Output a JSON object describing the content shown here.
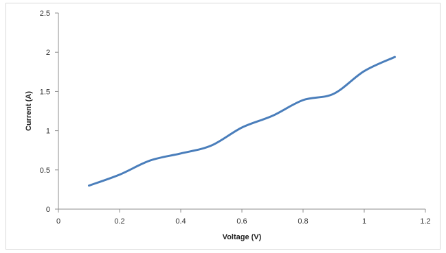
{
  "chart_data": {
    "type": "line",
    "title": "",
    "xlabel": "Voltage (V)",
    "ylabel": "Current (A)",
    "xlim": [
      0,
      1.2
    ],
    "ylim": [
      0,
      2.5
    ],
    "xticks": [
      "0",
      "0.2",
      "0.4",
      "0.6",
      "0.8",
      "1",
      "1.2"
    ],
    "yticks": [
      "0",
      "0.5",
      "1",
      "1.5",
      "2",
      "2.5"
    ],
    "grid": false,
    "legend": "none",
    "series": [
      {
        "color": "#4a7ebb",
        "x": [
          0.1,
          0.2,
          0.3,
          0.4,
          0.5,
          0.6,
          0.7,
          0.8,
          0.9,
          1.0,
          1.1
        ],
        "y": [
          0.3,
          0.44,
          0.62,
          0.71,
          0.81,
          1.04,
          1.19,
          1.39,
          1.47,
          1.76,
          1.94
        ]
      }
    ]
  }
}
